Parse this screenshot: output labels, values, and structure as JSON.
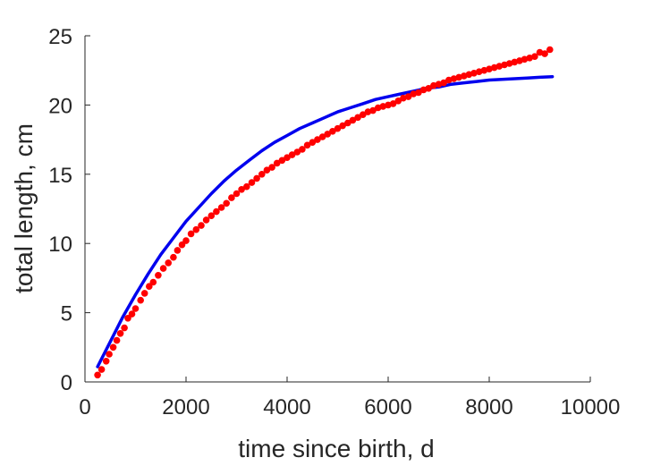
{
  "chart_data": {
    "type": "scatter",
    "title": "",
    "xlabel": "time since birth, d",
    "ylabel": "total length, cm",
    "xlim": [
      0,
      10000
    ],
    "ylim": [
      0,
      25
    ],
    "xticks": [
      0,
      2000,
      4000,
      6000,
      8000,
      10000
    ],
    "yticks": [
      0,
      5,
      10,
      15,
      20,
      25
    ],
    "grid": false,
    "legend": "none",
    "series": [
      {
        "kind": "points",
        "color": "#ff0000",
        "x": [
          250,
          330,
          420,
          480,
          560,
          630,
          700,
          780,
          850,
          930,
          1000,
          1100,
          1180,
          1270,
          1350,
          1450,
          1550,
          1650,
          1750,
          1830,
          1920,
          2000,
          2100,
          2200,
          2300,
          2400,
          2500,
          2600,
          2700,
          2800,
          2900,
          3000,
          3100,
          3200,
          3300,
          3400,
          3500,
          3600,
          3700,
          3800,
          3900,
          4000,
          4100,
          4200,
          4300,
          4400,
          4500,
          4600,
          4700,
          4800,
          4900,
          5000,
          5100,
          5200,
          5300,
          5400,
          5500,
          5600,
          5700,
          5800,
          5900,
          6000,
          6100,
          6200,
          6300,
          6400,
          6500,
          6600,
          6700,
          6800,
          6900,
          7000,
          7100,
          7200,
          7300,
          7400,
          7500,
          7600,
          7700,
          7800,
          7900,
          8000,
          8100,
          8200,
          8300,
          8400,
          8500,
          8600,
          8700,
          8800,
          8900,
          9000,
          9100,
          9200
        ],
        "y": [
          0.5,
          0.9,
          1.5,
          2.0,
          2.5,
          3.0,
          3.5,
          3.9,
          4.6,
          4.9,
          5.3,
          5.9,
          6.4,
          6.9,
          7.2,
          7.7,
          8.2,
          8.6,
          9.0,
          9.5,
          9.9,
          10.2,
          10.7,
          11.0,
          11.3,
          11.7,
          12.0,
          12.3,
          12.6,
          12.9,
          13.3,
          13.6,
          13.9,
          14.1,
          14.4,
          14.7,
          15.0,
          15.3,
          15.5,
          15.8,
          16.0,
          16.2,
          16.4,
          16.6,
          16.8,
          17.1,
          17.3,
          17.5,
          17.7,
          17.9,
          18.1,
          18.3,
          18.5,
          18.7,
          18.9,
          19.1,
          19.3,
          19.5,
          19.6,
          19.8,
          19.9,
          20.0,
          20.1,
          20.3,
          20.5,
          20.6,
          20.8,
          20.9,
          21.1,
          21.2,
          21.4,
          21.5,
          21.6,
          21.8,
          21.9,
          22.0,
          22.1,
          22.2,
          22.3,
          22.4,
          22.5,
          22.6,
          22.7,
          22.8,
          22.9,
          23.0,
          23.1,
          23.2,
          23.3,
          23.4,
          23.5,
          23.8,
          23.7,
          24.0
        ]
      },
      {
        "kind": "line",
        "color": "#0000ee",
        "x": [
          250,
          500,
          750,
          1000,
          1250,
          1500,
          1750,
          2000,
          2250,
          2500,
          2750,
          3000,
          3250,
          3500,
          3750,
          4000,
          4250,
          4500,
          4750,
          5000,
          5250,
          5500,
          5750,
          6000,
          6250,
          6500,
          6750,
          7000,
          7250,
          7500,
          7750,
          8000,
          8250,
          8500,
          8750,
          9000,
          9250
        ],
        "y": [
          1.1,
          2.9,
          4.7,
          6.3,
          7.8,
          9.2,
          10.4,
          11.6,
          12.6,
          13.6,
          14.5,
          15.3,
          16.0,
          16.7,
          17.3,
          17.8,
          18.3,
          18.7,
          19.1,
          19.5,
          19.8,
          20.1,
          20.4,
          20.6,
          20.8,
          21.0,
          21.2,
          21.3,
          21.5,
          21.6,
          21.7,
          21.8,
          21.85,
          21.9,
          21.95,
          22.0,
          22.05
        ]
      }
    ]
  }
}
